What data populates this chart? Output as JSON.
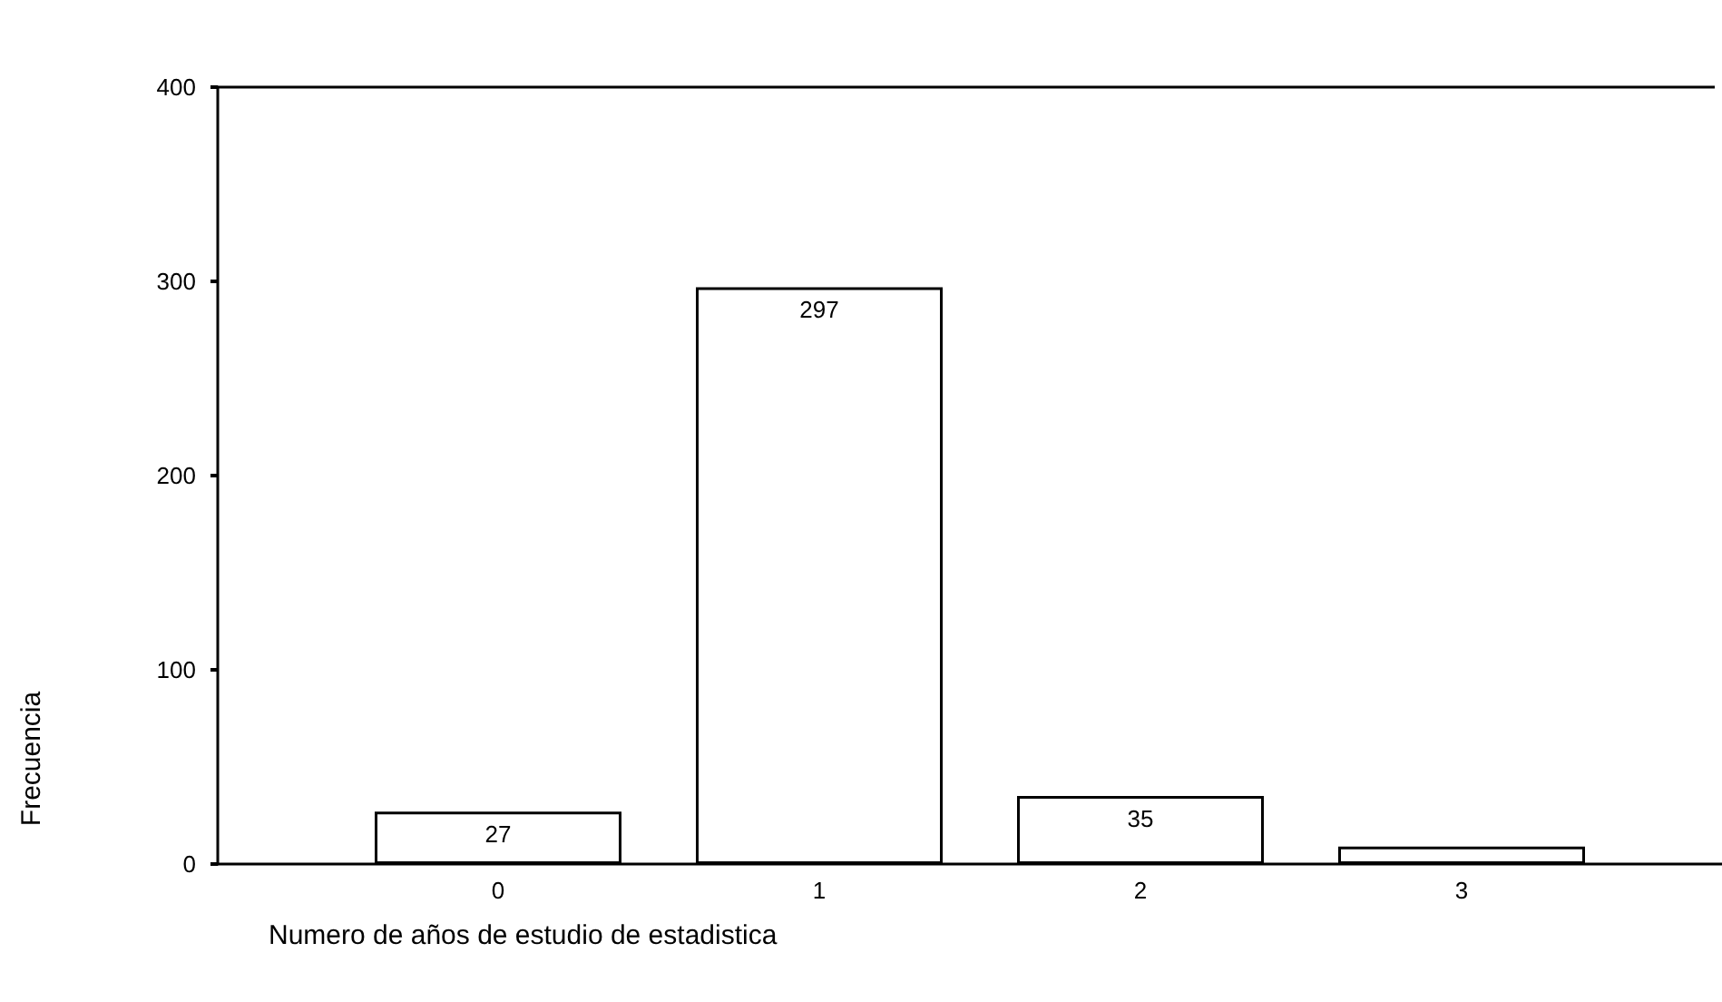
{
  "chart_data": {
    "type": "bar",
    "xlabel": "Numero de años de estudio de estadistica",
    "ylabel": "Frecuencia",
    "categories": [
      "0",
      "1",
      "2",
      "3"
    ],
    "values": [
      27,
      297,
      35,
      9
    ],
    "value_labels": [
      "27",
      "297",
      "35",
      null
    ],
    "color": "#ffffff",
    "ylim": [
      0,
      400
    ],
    "yticks": [
      0,
      100,
      200,
      300,
      400
    ],
    "grid": false
  }
}
